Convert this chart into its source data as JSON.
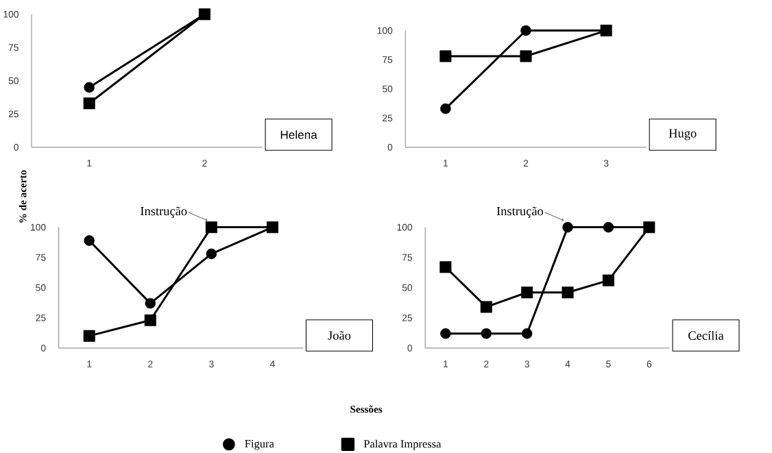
{
  "chart_data": [
    {
      "type": "line",
      "ylabel": "% de acerto",
      "categories": [
        "1",
        "2"
      ],
      "ylim": [
        0,
        100
      ],
      "yticks": [
        0,
        25,
        50,
        75,
        100
      ],
      "legend": "bottom",
      "annotations": [
        "Helena"
      ],
      "series": [
        {
          "name": "Figura",
          "color": "#000000",
          "marker": "circle",
          "values": [
            45,
            100
          ]
        },
        {
          "name": "Palavra Impressa",
          "color": "#000000",
          "marker": "square",
          "values": [
            33,
            100
          ]
        }
      ]
    },
    {
      "type": "line",
      "categories": [
        "1",
        "2",
        "3"
      ],
      "ylim": [
        0,
        100
      ],
      "yticks": [
        0,
        25,
        50,
        75,
        100
      ],
      "annotations": [
        "Hugo"
      ],
      "series": [
        {
          "color": "#000000",
          "marker": "circle",
          "values": [
            33,
            100,
            100
          ]
        },
        {
          "color": "#000000",
          "marker": "square",
          "values": [
            78,
            78,
            100
          ]
        }
      ]
    },
    {
      "type": "line",
      "xlabel": "Sessões",
      "categories": [
        "1",
        "2",
        "3",
        "4"
      ],
      "ylim": [
        0,
        100
      ],
      "yticks": [
        0,
        25,
        50,
        75,
        100
      ],
      "annotations": [
        {
          "text": "Instrução",
          "x": "3",
          "y": 100
        },
        "João"
      ],
      "series": [
        {
          "color": "#000000",
          "marker": "circle",
          "values": [
            89,
            37,
            78,
            100
          ]
        },
        {
          "color": "#000000",
          "marker": "square",
          "values": [
            10,
            23,
            100,
            100
          ]
        }
      ]
    },
    {
      "type": "line",
      "categories": [
        "1",
        "2",
        "3",
        "4",
        "5",
        "6"
      ],
      "ylim": [
        0,
        100
      ],
      "yticks": [
        0,
        25,
        50,
        75,
        100
      ],
      "annotations": [
        {
          "text": "Instrução",
          "x": "4",
          "y": 100
        },
        "Cecília"
      ],
      "series": [
        {
          "color": "#000000",
          "marker": "circle",
          "values": [
            12,
            12,
            12,
            100,
            100,
            100
          ]
        },
        {
          "color": "#000000",
          "marker": "square",
          "values": [
            67,
            34,
            46,
            46,
            56,
            100
          ]
        }
      ]
    }
  ]
}
